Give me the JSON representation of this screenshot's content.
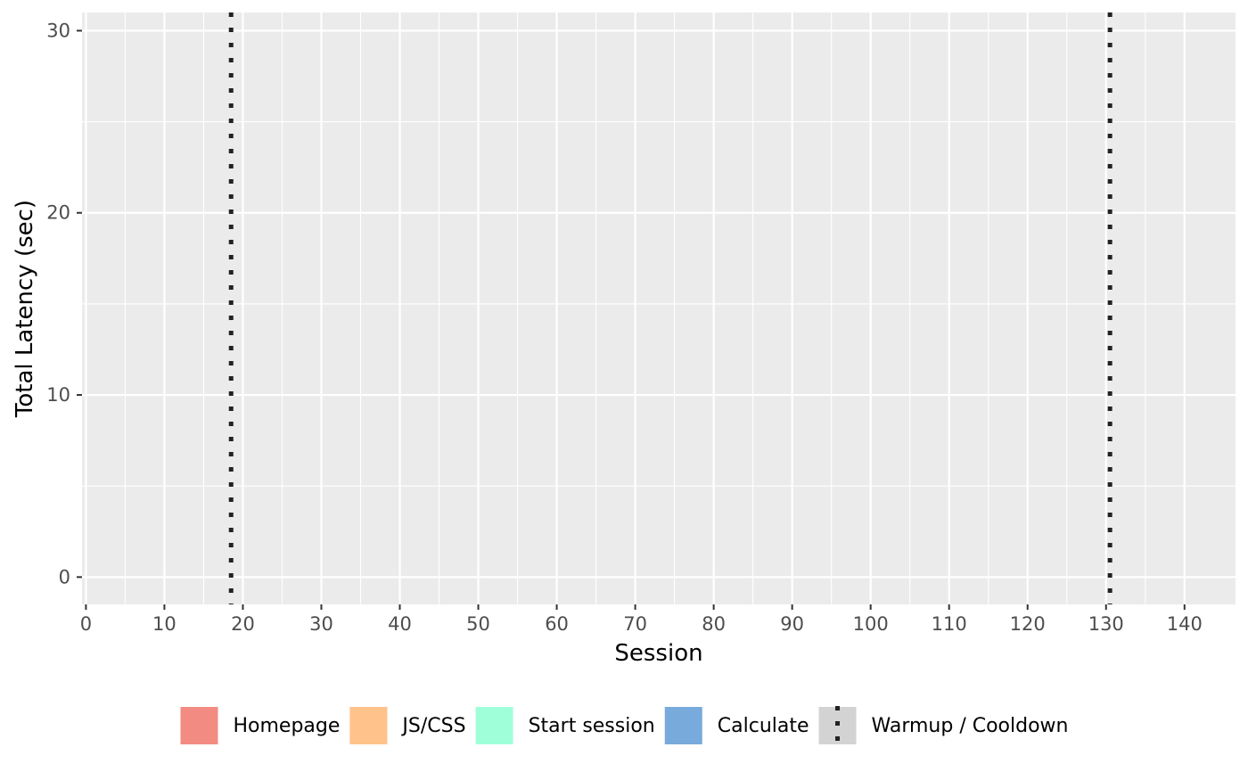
{
  "chart_data": {
    "type": "bar",
    "xlabel": "Session",
    "ylabel": "Total Latency (sec)",
    "xlim": [
      -0.5,
      146.5
    ],
    "ylim": [
      -1.5,
      31
    ],
    "x_ticks": [
      0,
      10,
      20,
      30,
      40,
      50,
      60,
      70,
      80,
      90,
      100,
      110,
      120,
      130,
      140
    ],
    "y_ticks": [
      0,
      10,
      20,
      30
    ],
    "grid": true,
    "series": [
      {
        "name": "Homepage",
        "color": "#F28B82",
        "values": []
      },
      {
        "name": "JS/CSS",
        "color": "#FFC28A",
        "values": []
      },
      {
        "name": "Start session",
        "color": "#9FFFD8",
        "values": []
      },
      {
        "name": "Calculate",
        "color": "#78AADB",
        "values": []
      }
    ],
    "vlines": [
      {
        "name": "Warmup / Cooldown",
        "x": 18.5,
        "style": "dotted",
        "color": "#222222"
      },
      {
        "name": "Warmup / Cooldown",
        "x": 130.5,
        "style": "dotted",
        "color": "#222222"
      }
    ],
    "legend": {
      "placement": "bottom",
      "items": [
        {
          "label": "Homepage",
          "color": "#F28B82",
          "kind": "fill"
        },
        {
          "label": "JS/CSS",
          "color": "#FFC28A",
          "kind": "fill"
        },
        {
          "label": "Start session",
          "color": "#9FFFD8",
          "kind": "fill"
        },
        {
          "label": "Calculate",
          "color": "#78AADB",
          "kind": "fill"
        },
        {
          "label": "Warmup / Cooldown",
          "color": "#D3D3D3",
          "kind": "vline"
        }
      ]
    }
  }
}
